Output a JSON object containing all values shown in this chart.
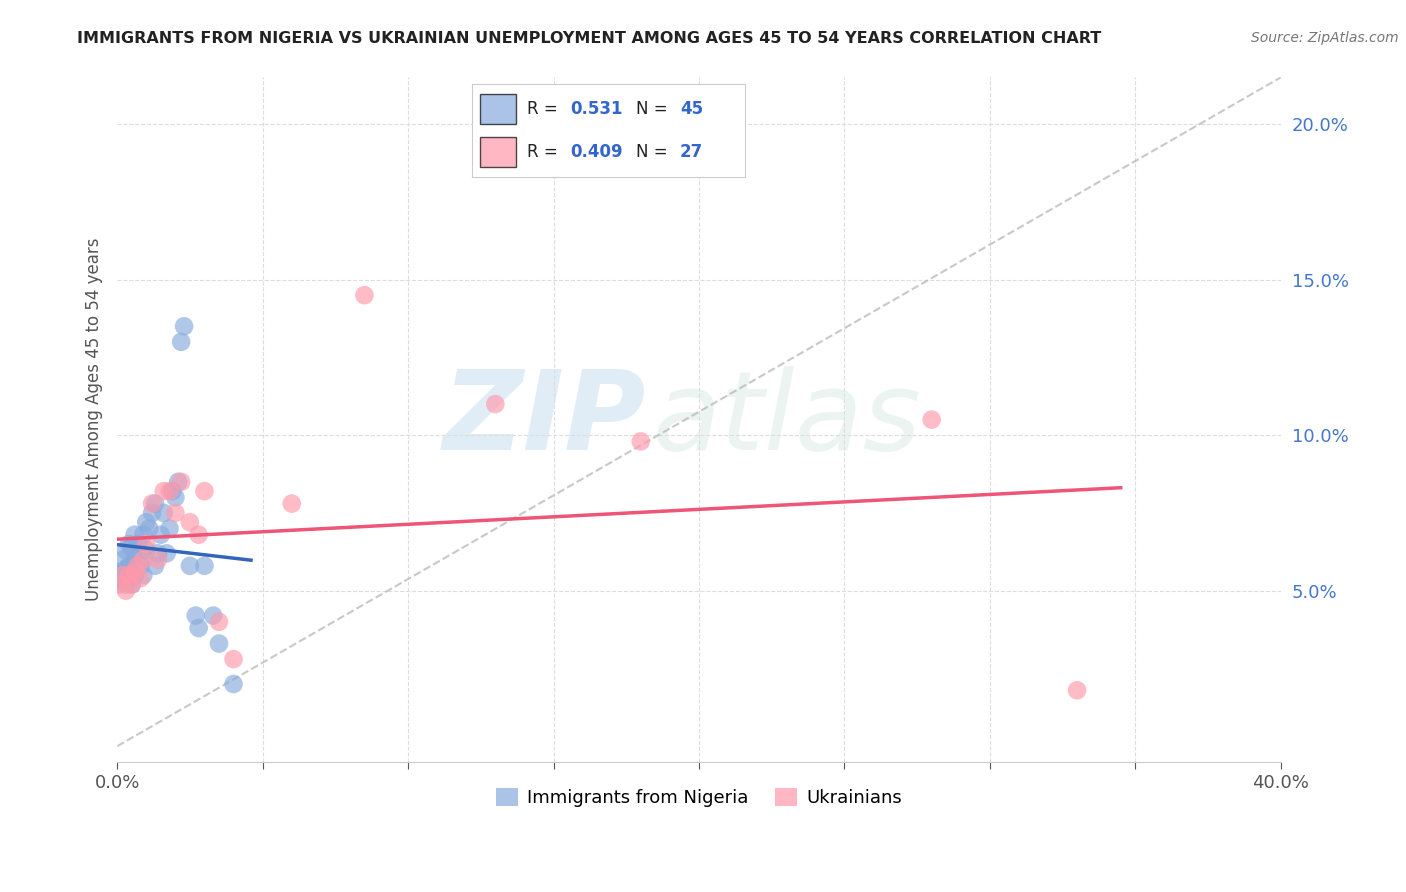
{
  "title": "IMMIGRANTS FROM NIGERIA VS UKRAINIAN UNEMPLOYMENT AMONG AGES 45 TO 54 YEARS CORRELATION CHART",
  "source": "Source: ZipAtlas.com",
  "ylabel": "Unemployment Among Ages 45 to 54 years",
  "xlim": [
    0.0,
    0.4
  ],
  "ylim": [
    -0.005,
    0.215
  ],
  "legend_label1": "Immigrants from Nigeria",
  "legend_label2": "Ukrainians",
  "R1": 0.531,
  "N1": 45,
  "R2": 0.409,
  "N2": 27,
  "color_nigeria": "#88AADD",
  "color_ukraine": "#FF99AA",
  "color_nigeria_line": "#3366BB",
  "color_ukraine_line": "#EE5577",
  "color_dashed": "#BBBBBB",
  "nigeria_x": [
    0.001,
    0.001,
    0.002,
    0.002,
    0.003,
    0.003,
    0.003,
    0.004,
    0.004,
    0.004,
    0.005,
    0.005,
    0.005,
    0.006,
    0.006,
    0.006,
    0.007,
    0.007,
    0.008,
    0.008,
    0.009,
    0.009,
    0.01,
    0.01,
    0.011,
    0.012,
    0.013,
    0.013,
    0.014,
    0.015,
    0.016,
    0.017,
    0.018,
    0.019,
    0.02,
    0.021,
    0.022,
    0.023,
    0.025,
    0.027,
    0.028,
    0.03,
    0.033,
    0.035,
    0.04
  ],
  "nigeria_y": [
    0.053,
    0.056,
    0.055,
    0.06,
    0.052,
    0.057,
    0.063,
    0.055,
    0.058,
    0.065,
    0.052,
    0.058,
    0.064,
    0.055,
    0.06,
    0.068,
    0.058,
    0.065,
    0.058,
    0.062,
    0.055,
    0.068,
    0.063,
    0.072,
    0.07,
    0.075,
    0.078,
    0.058,
    0.062,
    0.068,
    0.075,
    0.062,
    0.07,
    0.082,
    0.08,
    0.085,
    0.13,
    0.135,
    0.058,
    0.042,
    0.038,
    0.058,
    0.042,
    0.033,
    0.02
  ],
  "ukraine_x": [
    0.001,
    0.002,
    0.003,
    0.004,
    0.005,
    0.006,
    0.007,
    0.008,
    0.009,
    0.01,
    0.012,
    0.014,
    0.016,
    0.018,
    0.02,
    0.022,
    0.025,
    0.028,
    0.03,
    0.035,
    0.04,
    0.06,
    0.085,
    0.13,
    0.18,
    0.28,
    0.33
  ],
  "ukraine_y": [
    0.052,
    0.055,
    0.05,
    0.055,
    0.052,
    0.056,
    0.058,
    0.054,
    0.06,
    0.065,
    0.078,
    0.06,
    0.082,
    0.082,
    0.075,
    0.085,
    0.072,
    0.068,
    0.082,
    0.04,
    0.028,
    0.078,
    0.145,
    0.11,
    0.098,
    0.105,
    0.018
  ],
  "watermark_zip": "ZIP",
  "watermark_atlas": "atlas",
  "background_color": "#FFFFFF",
  "grid_color": "#DDDDDD",
  "nigeria_line_x": [
    0.0,
    0.045
  ],
  "ukraine_line_x": [
    0.0,
    0.34
  ]
}
